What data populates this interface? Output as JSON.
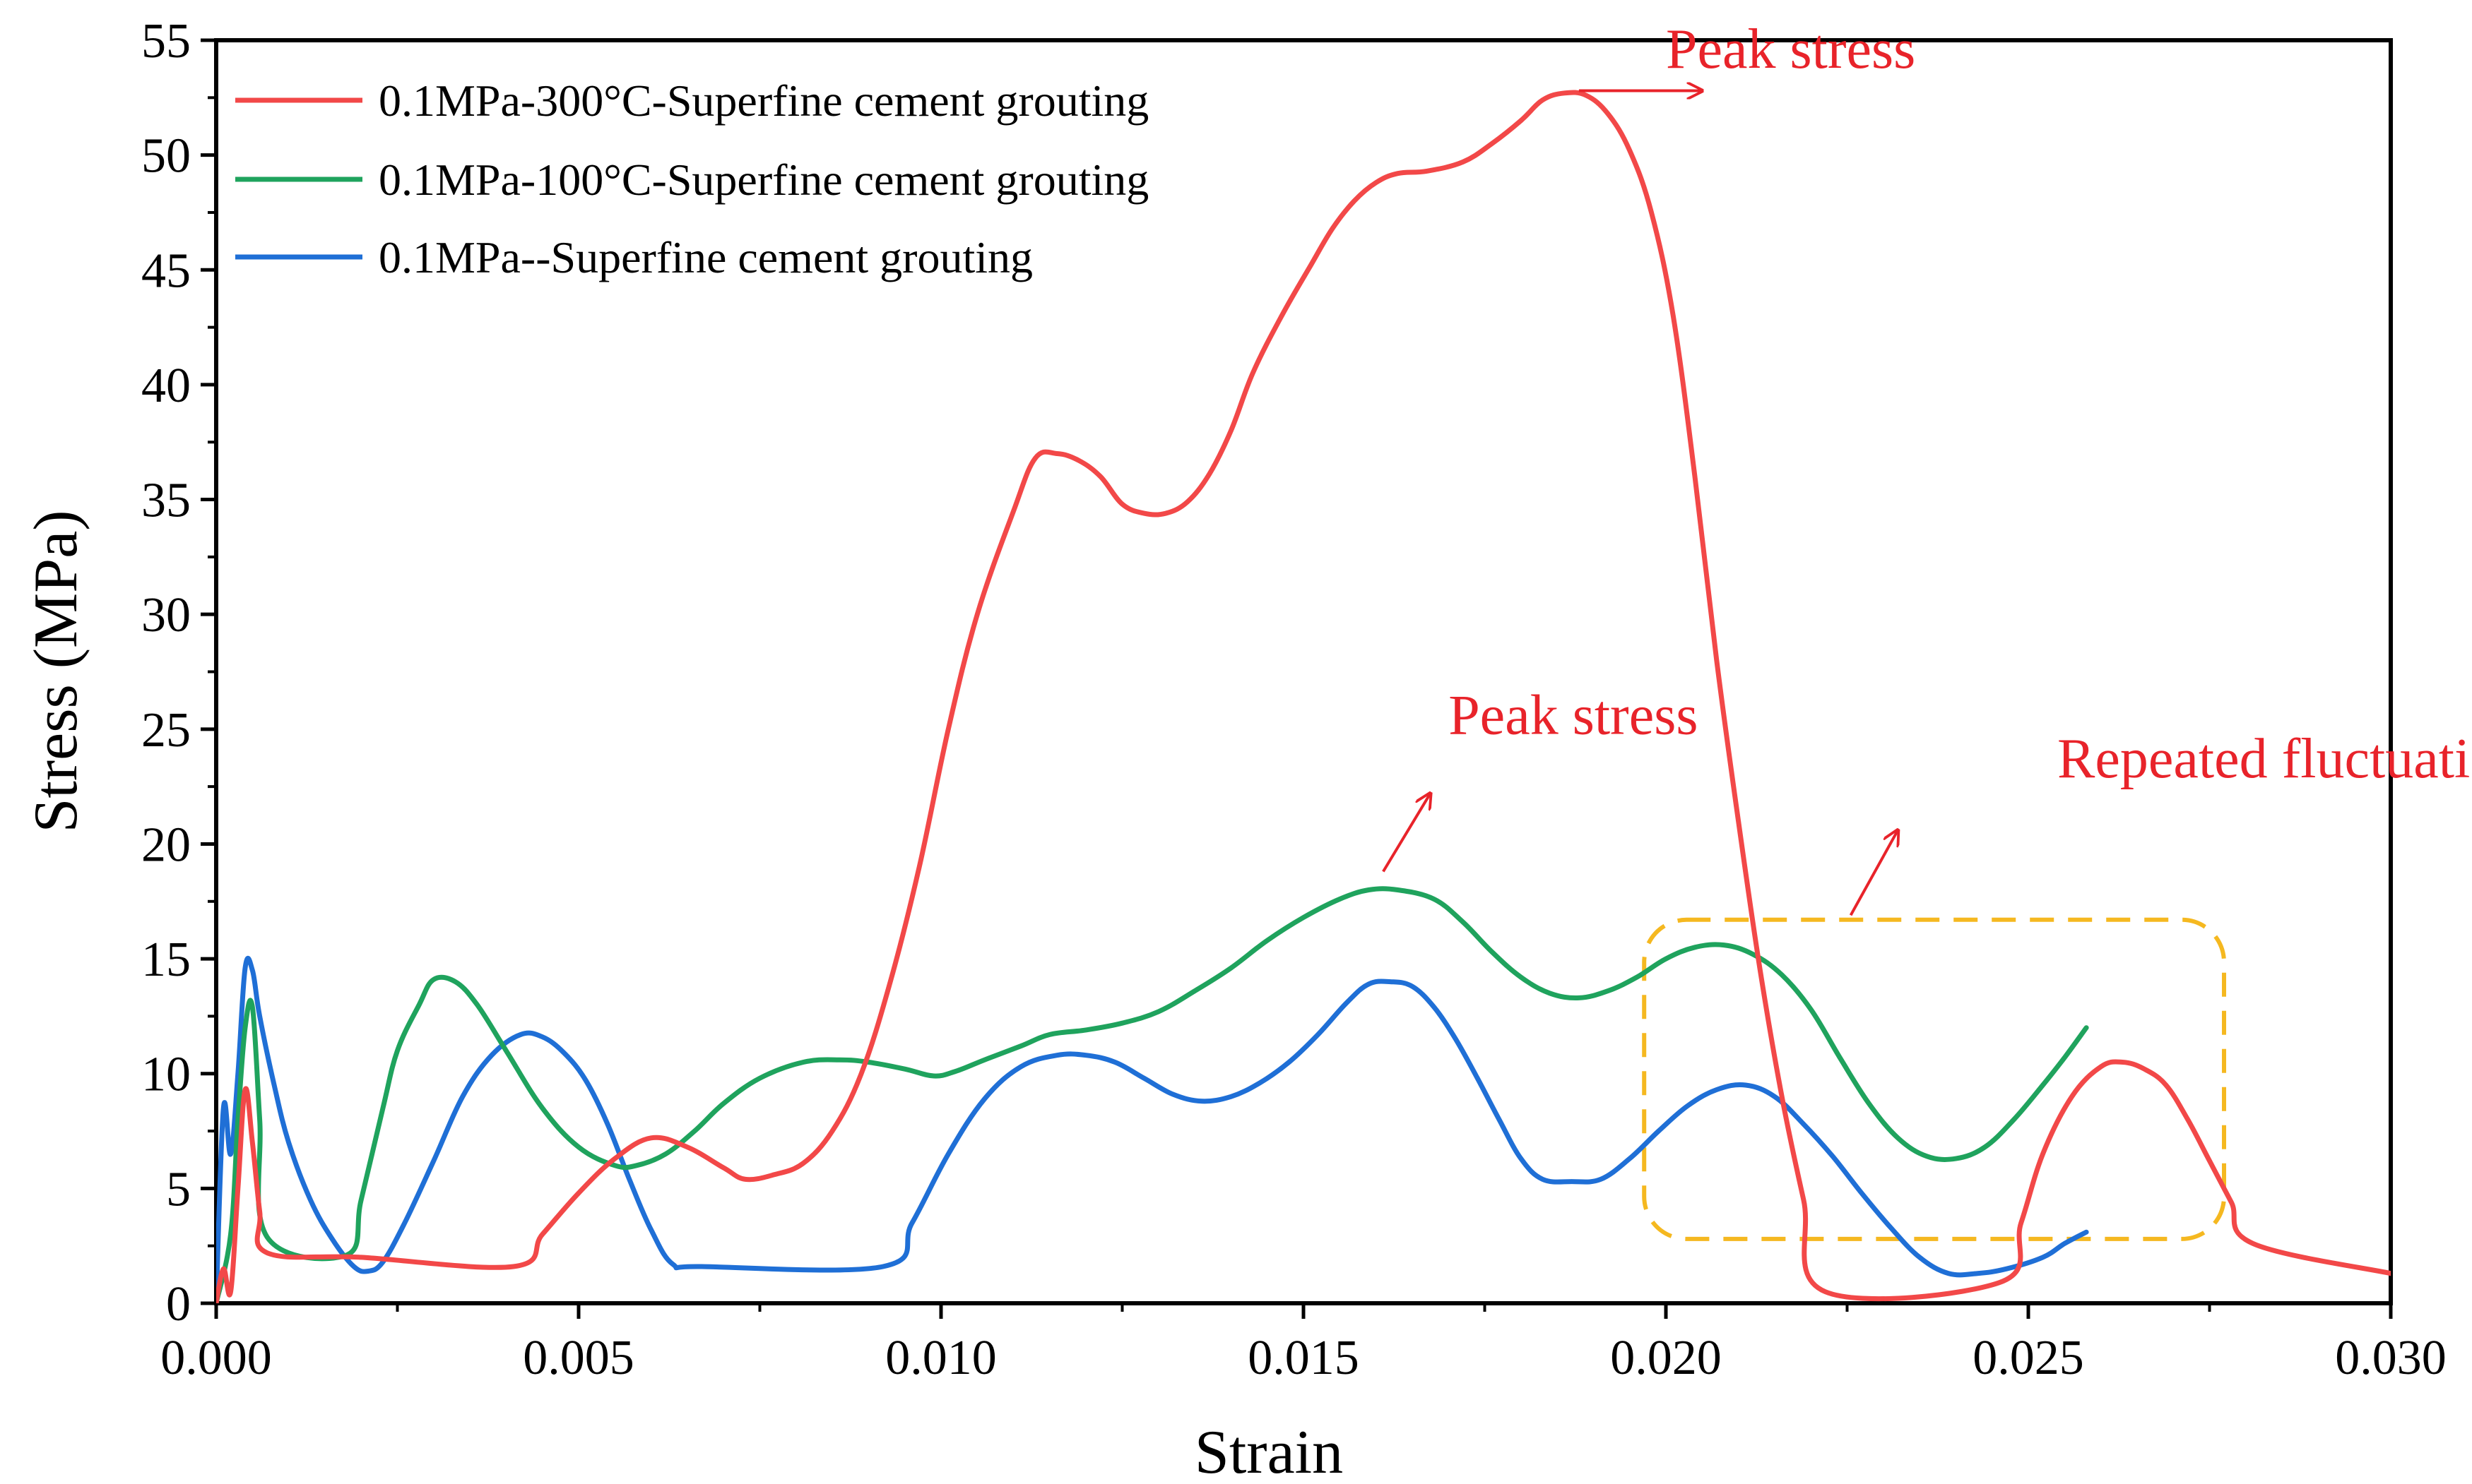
{
  "chart_data": {
    "type": "line",
    "xlabel": "Strain",
    "ylabel": "Stress (MPa)",
    "xlim": [
      0.0,
      0.03
    ],
    "ylim": [
      0,
      55
    ],
    "xticks": [
      0.0,
      0.005,
      0.01,
      0.015,
      0.02,
      0.025,
      0.03
    ],
    "xtick_labels": [
      "0.000",
      "0.005",
      "0.010",
      "0.015",
      "0.020",
      "0.025",
      "0.030"
    ],
    "yticks": [
      0,
      5,
      10,
      15,
      20,
      25,
      30,
      35,
      40,
      45,
      50,
      55
    ],
    "ytick_labels": [
      "0",
      "5",
      "10",
      "15",
      "20",
      "25",
      "30",
      "35",
      "40",
      "45",
      "50",
      "55"
    ],
    "grid": false,
    "legend_position": "top-left",
    "series": [
      {
        "name": "0.1MPa-300°C-Superfine cement grouting",
        "color": "#f24848",
        "points": [
          [
            0.0,
            0.0
          ],
          [
            0.0001,
            1.5
          ],
          [
            0.0002,
            0.5
          ],
          [
            0.0003,
            5.0
          ],
          [
            0.0004,
            9.3
          ],
          [
            0.0005,
            7.0
          ],
          [
            0.0006,
            4.0
          ],
          [
            0.0007,
            2.2
          ],
          [
            0.002,
            2.0
          ],
          [
            0.0041,
            1.6
          ],
          [
            0.0045,
            3.0
          ],
          [
            0.005,
            4.8
          ],
          [
            0.0055,
            6.3
          ],
          [
            0.006,
            7.2
          ],
          [
            0.0065,
            6.8
          ],
          [
            0.007,
            5.9
          ],
          [
            0.0073,
            5.4
          ],
          [
            0.0077,
            5.6
          ],
          [
            0.0081,
            6.1
          ],
          [
            0.0085,
            7.5
          ],
          [
            0.0089,
            10.0
          ],
          [
            0.0093,
            14.0
          ],
          [
            0.0097,
            19.0
          ],
          [
            0.0101,
            25.0
          ],
          [
            0.0105,
            30.0
          ],
          [
            0.011,
            34.5
          ],
          [
            0.0113,
            36.8
          ],
          [
            0.0116,
            37.0
          ],
          [
            0.0119,
            36.7
          ],
          [
            0.0122,
            36.0
          ],
          [
            0.0125,
            34.8
          ],
          [
            0.0128,
            34.4
          ],
          [
            0.0131,
            34.4
          ],
          [
            0.0134,
            34.9
          ],
          [
            0.0137,
            36.1
          ],
          [
            0.014,
            38.0
          ],
          [
            0.0143,
            40.5
          ],
          [
            0.0147,
            43.0
          ],
          [
            0.0151,
            45.2
          ],
          [
            0.0154,
            46.8
          ],
          [
            0.0157,
            48.0
          ],
          [
            0.016,
            48.8
          ],
          [
            0.0163,
            49.2
          ],
          [
            0.0167,
            49.3
          ],
          [
            0.0172,
            49.7
          ],
          [
            0.0176,
            50.5
          ],
          [
            0.018,
            51.5
          ],
          [
            0.0183,
            52.4
          ],
          [
            0.0186,
            52.7
          ],
          [
            0.0189,
            52.6
          ],
          [
            0.0192,
            51.8
          ],
          [
            0.0195,
            50.2
          ],
          [
            0.0198,
            47.5
          ],
          [
            0.0201,
            43.0
          ],
          [
            0.0204,
            36.0
          ],
          [
            0.0207,
            28.0
          ],
          [
            0.021,
            21.0
          ],
          [
            0.0213,
            14.5
          ],
          [
            0.0216,
            9.0
          ],
          [
            0.0219,
            4.5
          ],
          [
            0.0222,
            0.5
          ],
          [
            0.0246,
            0.9
          ],
          [
            0.0249,
            3.5
          ],
          [
            0.0252,
            6.5
          ],
          [
            0.0256,
            9.0
          ],
          [
            0.026,
            10.3
          ],
          [
            0.0263,
            10.5
          ],
          [
            0.0266,
            10.2
          ],
          [
            0.0269,
            9.5
          ],
          [
            0.0272,
            8.0
          ],
          [
            0.0275,
            6.2
          ],
          [
            0.0278,
            4.4
          ],
          [
            0.0281,
            2.6
          ],
          [
            0.03,
            1.3
          ]
        ]
      },
      {
        "name": "0.1MPa-100°C-Superfine cement grouting",
        "color": "#1fa35d",
        "points": [
          [
            0.0,
            0.0
          ],
          [
            0.0002,
            3.0
          ],
          [
            0.0003,
            8.0
          ],
          [
            0.0004,
            12.0
          ],
          [
            0.0005,
            12.9
          ],
          [
            0.0006,
            8.0
          ],
          [
            0.0007,
            2.9
          ],
          [
            0.0018,
            2.1
          ],
          [
            0.002,
            4.5
          ],
          [
            0.0023,
            8.5
          ],
          [
            0.0025,
            11.0
          ],
          [
            0.0028,
            13.0
          ],
          [
            0.003,
            14.1
          ],
          [
            0.0033,
            14.0
          ],
          [
            0.0036,
            13.0
          ],
          [
            0.004,
            11.0
          ],
          [
            0.0045,
            8.5
          ],
          [
            0.005,
            6.8
          ],
          [
            0.0055,
            6.0
          ],
          [
            0.0058,
            6.0
          ],
          [
            0.0062,
            6.5
          ],
          [
            0.0066,
            7.5
          ],
          [
            0.007,
            8.7
          ],
          [
            0.0075,
            9.8
          ],
          [
            0.0081,
            10.5
          ],
          [
            0.0086,
            10.6
          ],
          [
            0.009,
            10.5
          ],
          [
            0.0095,
            10.2
          ],
          [
            0.0099,
            9.9
          ],
          [
            0.0102,
            10.1
          ],
          [
            0.0106,
            10.6
          ],
          [
            0.0111,
            11.2
          ],
          [
            0.0115,
            11.7
          ],
          [
            0.012,
            11.9
          ],
          [
            0.0125,
            12.2
          ],
          [
            0.013,
            12.7
          ],
          [
            0.0135,
            13.6
          ],
          [
            0.014,
            14.6
          ],
          [
            0.0145,
            15.8
          ],
          [
            0.015,
            16.8
          ],
          [
            0.0155,
            17.6
          ],
          [
            0.0159,
            18.0
          ],
          [
            0.0163,
            18.0
          ],
          [
            0.0168,
            17.6
          ],
          [
            0.0172,
            16.6
          ],
          [
            0.0176,
            15.3
          ],
          [
            0.018,
            14.2
          ],
          [
            0.0184,
            13.5
          ],
          [
            0.0188,
            13.3
          ],
          [
            0.0192,
            13.6
          ],
          [
            0.0196,
            14.2
          ],
          [
            0.02,
            15.0
          ],
          [
            0.0204,
            15.5
          ],
          [
            0.0208,
            15.6
          ],
          [
            0.0212,
            15.2
          ],
          [
            0.0216,
            14.3
          ],
          [
            0.022,
            12.8
          ],
          [
            0.0224,
            10.7
          ],
          [
            0.0228,
            8.7
          ],
          [
            0.0232,
            7.2
          ],
          [
            0.0236,
            6.4
          ],
          [
            0.024,
            6.3
          ],
          [
            0.0244,
            6.8
          ],
          [
            0.0248,
            8.0
          ],
          [
            0.0252,
            9.5
          ],
          [
            0.0255,
            10.7
          ],
          [
            0.0258,
            12.0
          ]
        ]
      },
      {
        "name": "0.1MPa--Superfine cement grouting",
        "color": "#1f6fd6",
        "points": [
          [
            0.0,
            0.0
          ],
          [
            0.0001,
            8.5
          ],
          [
            0.0002,
            6.5
          ],
          [
            0.0003,
            10.0
          ],
          [
            0.0004,
            14.6
          ],
          [
            0.0005,
            14.5
          ],
          [
            0.0006,
            12.5
          ],
          [
            0.0008,
            9.5
          ],
          [
            0.001,
            7.0
          ],
          [
            0.0013,
            4.5
          ],
          [
            0.0016,
            2.8
          ],
          [
            0.0019,
            1.6
          ],
          [
            0.0021,
            1.4
          ],
          [
            0.0023,
            1.8
          ],
          [
            0.0026,
            3.5
          ],
          [
            0.003,
            6.2
          ],
          [
            0.0034,
            9.0
          ],
          [
            0.0038,
            10.8
          ],
          [
            0.0042,
            11.7
          ],
          [
            0.0045,
            11.6
          ],
          [
            0.0048,
            10.9
          ],
          [
            0.0051,
            9.7
          ],
          [
            0.0054,
            7.8
          ],
          [
            0.0057,
            5.4
          ],
          [
            0.006,
            3.2
          ],
          [
            0.0063,
            1.7
          ],
          [
            0.0067,
            1.6
          ],
          [
            0.0092,
            1.6
          ],
          [
            0.0096,
            3.5
          ],
          [
            0.0101,
            6.5
          ],
          [
            0.0106,
            8.9
          ],
          [
            0.0111,
            10.3
          ],
          [
            0.0116,
            10.8
          ],
          [
            0.012,
            10.8
          ],
          [
            0.0124,
            10.5
          ],
          [
            0.0128,
            9.8
          ],
          [
            0.0132,
            9.1
          ],
          [
            0.0136,
            8.8
          ],
          [
            0.014,
            9.0
          ],
          [
            0.0144,
            9.6
          ],
          [
            0.0148,
            10.5
          ],
          [
            0.0152,
            11.7
          ],
          [
            0.0156,
            13.1
          ],
          [
            0.0159,
            13.9
          ],
          [
            0.0162,
            14.0
          ],
          [
            0.0165,
            13.8
          ],
          [
            0.0168,
            12.9
          ],
          [
            0.0171,
            11.5
          ],
          [
            0.0174,
            9.8
          ],
          [
            0.0177,
            8.0
          ],
          [
            0.018,
            6.3
          ],
          [
            0.0183,
            5.4
          ],
          [
            0.0187,
            5.3
          ],
          [
            0.0191,
            5.4
          ],
          [
            0.0195,
            6.3
          ],
          [
            0.0199,
            7.5
          ],
          [
            0.0203,
            8.6
          ],
          [
            0.0207,
            9.3
          ],
          [
            0.0211,
            9.5
          ],
          [
            0.0215,
            9.0
          ],
          [
            0.0219,
            7.8
          ],
          [
            0.0223,
            6.4
          ],
          [
            0.0227,
            4.8
          ],
          [
            0.0231,
            3.3
          ],
          [
            0.0235,
            2.0
          ],
          [
            0.0239,
            1.3
          ],
          [
            0.0243,
            1.3
          ],
          [
            0.0247,
            1.5
          ],
          [
            0.0252,
            2.0
          ],
          [
            0.0255,
            2.6
          ],
          [
            0.0258,
            3.1
          ]
        ]
      }
    ],
    "annotations": [
      {
        "text": "Peak stress",
        "color": "#e8232a",
        "x": 0.02,
        "y": 53.8
      },
      {
        "text": "Peak stress",
        "color": "#e8232a",
        "x": 0.017,
        "y": 24.8
      },
      {
        "text": "Repeated fluctuations",
        "color": "#e8232a",
        "x": 0.0254,
        "y": 22.9
      }
    ],
    "highlight_box": {
      "color": "#f5b820",
      "x_range": [
        0.0197,
        0.0277
      ],
      "y_range": [
        2.8,
        16.7
      ]
    }
  }
}
